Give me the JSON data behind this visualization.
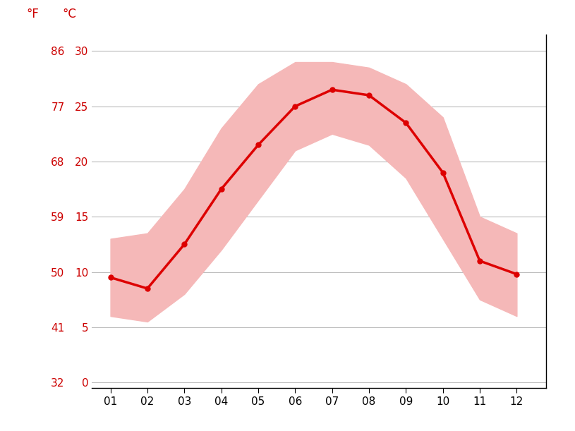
{
  "months": [
    1,
    2,
    3,
    4,
    5,
    6,
    7,
    8,
    9,
    10,
    11,
    12
  ],
  "month_labels": [
    "01",
    "02",
    "03",
    "04",
    "05",
    "06",
    "07",
    "08",
    "09",
    "10",
    "11",
    "12"
  ],
  "avg_temp_c": [
    9.5,
    8.5,
    12.5,
    17.5,
    21.5,
    25.0,
    26.5,
    26.0,
    23.5,
    19.0,
    11.0,
    9.8
  ],
  "high_temp_c": [
    13.0,
    13.5,
    17.5,
    23.0,
    27.0,
    29.0,
    29.0,
    28.5,
    27.0,
    24.0,
    15.0,
    13.5
  ],
  "low_temp_c": [
    6.0,
    5.5,
    8.0,
    12.0,
    16.5,
    21.0,
    22.5,
    21.5,
    18.5,
    13.0,
    7.5,
    6.0
  ],
  "y_ticks_c": [
    0,
    5,
    10,
    15,
    20,
    25,
    30
  ],
  "y_ticks_f": [
    32,
    41,
    50,
    59,
    68,
    77,
    86
  ],
  "ylim_c": [
    -0.5,
    31.5
  ],
  "xlim": [
    0.5,
    12.8
  ],
  "line_color": "#dd0000",
  "band_color": "#f5b8b8",
  "grid_color": "#bbbbbb",
  "tick_color": "#cc0000",
  "bg_color": "#ffffff",
  "label_f": "°F",
  "label_c": "°C",
  "line_width": 2.5,
  "marker_size": 5,
  "font_size_ticks": 11,
  "font_size_labels": 12
}
